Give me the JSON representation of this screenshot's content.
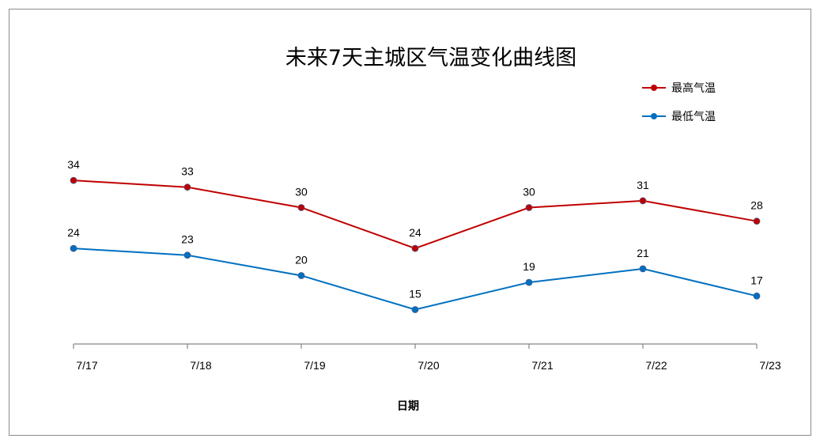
{
  "chart_data": {
    "type": "line",
    "title": "未来7天主城区气温变化曲线图",
    "xlabel": "日期",
    "ylabel": "",
    "categories": [
      "7/17",
      "7/18",
      "7/19",
      "7/20",
      "7/21",
      "7/22",
      "7/23"
    ],
    "series": [
      {
        "name": "最高气温",
        "values": [
          34,
          33,
          30,
          24,
          30,
          31,
          28
        ],
        "color": "#c00000"
      },
      {
        "name": "最低气温",
        "values": [
          24,
          23,
          20,
          15,
          19,
          21,
          17
        ],
        "color": "#0070c0"
      }
    ],
    "ylim": [
      10,
      40
    ],
    "grid": false,
    "legend": "top-right",
    "data_labels": true
  }
}
